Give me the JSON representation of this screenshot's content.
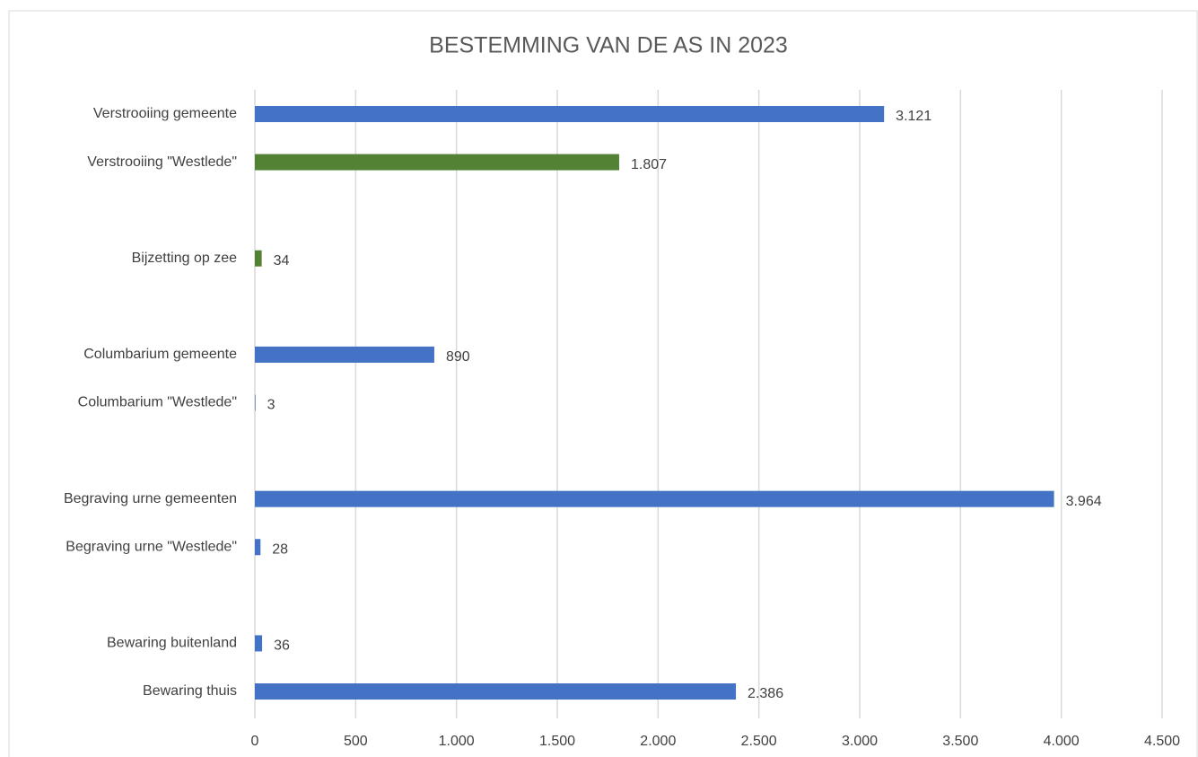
{
  "chart_data": {
    "type": "hbar",
    "title": "BESTEMMING VAN DE AS IN 2023",
    "categories": [
      "Verstrooiing gemeente",
      "Verstrooiing \"Westlede\"",
      null,
      "Bijzetting op zee",
      null,
      "Columbarium gemeente",
      "Columbarium \"Westlede\"",
      null,
      "Begraving urne gemeenten",
      "Begraving urne \"Westlede\"",
      null,
      "Bewaring buitenland",
      "Bewaring thuis"
    ],
    "values": [
      3121,
      1807,
      null,
      34,
      null,
      890,
      3,
      null,
      3964,
      28,
      null,
      36,
      2386
    ],
    "value_labels": [
      "3.121",
      "1.807",
      null,
      "34",
      null,
      "890",
      "3",
      null,
      "3.964",
      "28",
      null,
      "36",
      "2.386"
    ],
    "colors": [
      "#4472c4",
      "#548235",
      null,
      "#548235",
      null,
      "#4472c4",
      "#4472c4",
      null,
      "#4472c4",
      "#4472c4",
      null,
      "#4472c4",
      "#4472c4"
    ],
    "xlim": [
      0,
      4500
    ],
    "xticks": [
      0,
      500,
      {
        "value": 1000,
        "label": "1.000"
      },
      {
        "value": 1500,
        "label": "1.500"
      },
      {
        "value": 2000,
        "label": "2.000"
      },
      {
        "value": 2500,
        "label": "2.500"
      },
      {
        "value": 3000,
        "label": "3.000"
      },
      {
        "value": 3500,
        "label": "3.500"
      },
      {
        "value": 4000,
        "label": "4.000"
      },
      {
        "value": 4500,
        "label": "4.500"
      }
    ],
    "grid": true
  }
}
